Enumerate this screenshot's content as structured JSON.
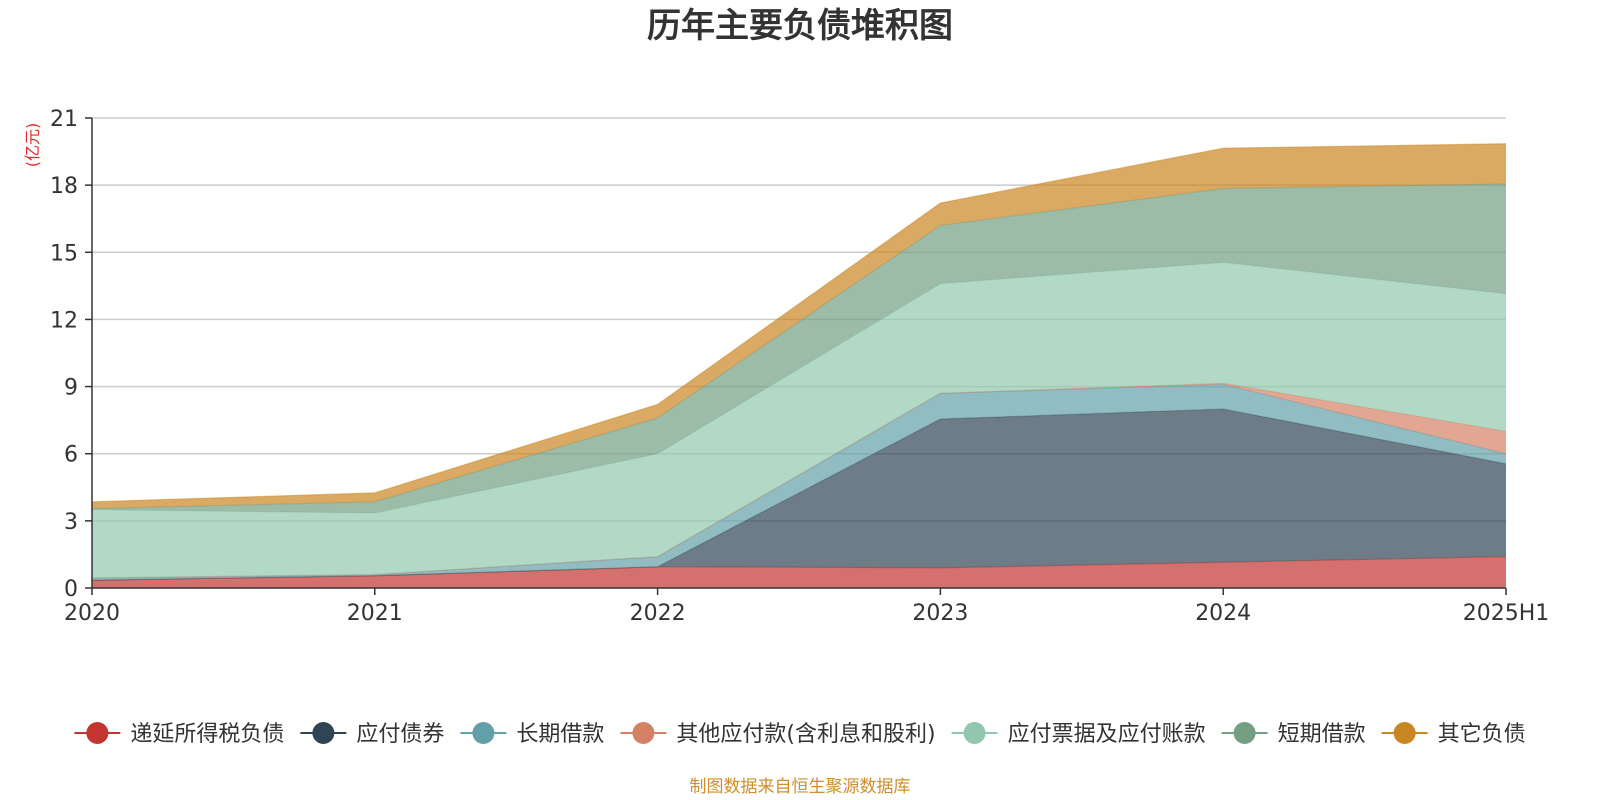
{
  "chart_data": {
    "type": "area",
    "title": "历年主要负债堆积图",
    "ylabel": "亿元",
    "categories": [
      "2020",
      "2021",
      "2022",
      "2023",
      "2024",
      "2025H1"
    ],
    "ylim": [
      0,
      21
    ],
    "yticks": [
      0,
      3,
      6,
      9,
      12,
      15,
      18,
      21
    ],
    "stacked": true,
    "grid": true,
    "legend_position": "bottom",
    "series": [
      {
        "name": "递延所得税负债",
        "color": "#c23531",
        "values": [
          0.35,
          0.55,
          0.95,
          0.9,
          1.15,
          1.4
        ]
      },
      {
        "name": "应付债券",
        "color": "#2f4554",
        "values": [
          0,
          0,
          0,
          6.65,
          6.85,
          4.15
        ]
      },
      {
        "name": "长期借款",
        "color": "#61a0a8",
        "values": [
          0.1,
          0.05,
          0.45,
          1.15,
          1.1,
          0.45
        ]
      },
      {
        "name": "其他应付款(含利息和股利)",
        "color": "#d48265",
        "values": [
          0,
          0,
          0,
          0,
          0.05,
          1.0
        ]
      },
      {
        "name": "应付票据及应付账款",
        "color": "#91c7ae",
        "values": [
          3.05,
          2.75,
          4.6,
          4.9,
          5.4,
          6.15
        ]
      },
      {
        "name": "短期借款",
        "color": "#749f83",
        "values": [
          0.05,
          0.5,
          1.6,
          2.6,
          3.3,
          4.9
        ]
      },
      {
        "name": "其它负债",
        "color": "#ca8622",
        "values": [
          0.3,
          0.4,
          0.6,
          1.0,
          1.8,
          1.8
        ]
      }
    ],
    "source": "制图数据来自恒生聚源数据库"
  }
}
